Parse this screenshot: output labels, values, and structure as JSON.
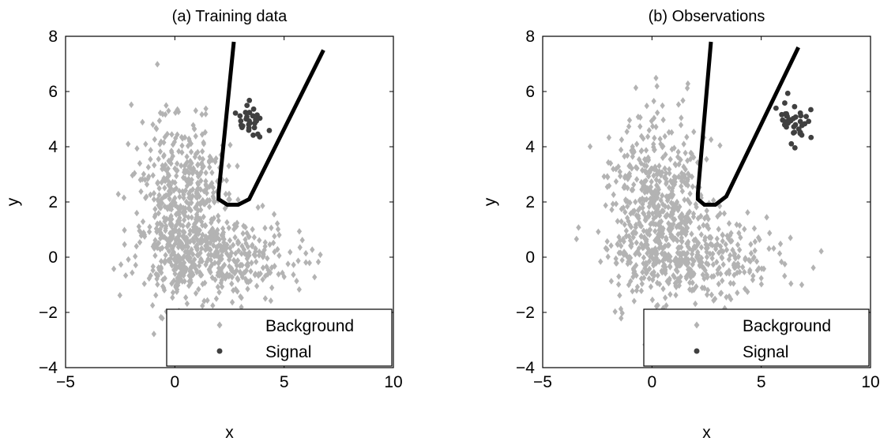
{
  "chart_data": [
    {
      "type": "scatter",
      "title": "(a) Training data",
      "xlabel": "x",
      "ylabel": "y",
      "xlim": [
        -5,
        10
      ],
      "ylim": [
        -4,
        8
      ],
      "xticks": [
        -5,
        0,
        5,
        10
      ],
      "yticks": [
        -4,
        -2,
        0,
        2,
        4,
        6,
        8
      ],
      "xtick_labels": [
        "−5",
        "0",
        "5",
        "10"
      ],
      "ytick_labels": [
        "−4",
        "−2",
        "0",
        "2",
        "4",
        "6",
        "8"
      ],
      "grid": false,
      "legend_position": "bottom-right",
      "series": [
        {
          "name": "Background",
          "marker": "diamond",
          "color": "#b3b3b3",
          "approximate_distribution": [
            {
              "count": 560,
              "center": [
                0.3,
                1.6
              ],
              "spread": [
                1.0,
                1.7
              ]
            },
            {
              "count": 330,
              "center": [
                2.3,
                0.0
              ],
              "spread": [
                1.7,
                0.8
              ]
            }
          ]
        },
        {
          "name": "Signal",
          "marker": "circle",
          "color": "#404040",
          "approximate_distribution": [
            {
              "count": 30,
              "center": [
                3.4,
                5.0
              ],
              "spread": [
                0.35,
                0.35
              ]
            }
          ]
        }
      ],
      "boundary_curve": {
        "color": "#000000",
        "points": [
          [
            2.7,
            7.8
          ],
          [
            2.0,
            2.3
          ],
          [
            2.0,
            2.1
          ],
          [
            2.4,
            1.9
          ],
          [
            2.9,
            1.9
          ],
          [
            3.4,
            2.1
          ],
          [
            6.8,
            7.5
          ]
        ]
      },
      "legend": [
        "Background",
        "Signal"
      ]
    },
    {
      "type": "scatter",
      "title": "(b) Observations",
      "xlabel": "x",
      "ylabel": "y",
      "xlim": [
        -5,
        10
      ],
      "ylim": [
        -4,
        8
      ],
      "xticks": [
        -5,
        0,
        5,
        10
      ],
      "yticks": [
        -4,
        -2,
        0,
        2,
        4,
        6,
        8
      ],
      "xtick_labels": [
        "−5",
        "0",
        "5",
        "10"
      ],
      "ytick_labels": [
        "−4",
        "−2",
        "0",
        "2",
        "4",
        "6",
        "8"
      ],
      "grid": false,
      "legend_position": "bottom-right",
      "series": [
        {
          "name": "Background",
          "marker": "diamond",
          "color": "#b3b3b3",
          "approximate_distribution": [
            {
              "count": 560,
              "center": [
                0.2,
                1.7
              ],
              "spread": [
                1.0,
                1.7
              ]
            },
            {
              "count": 330,
              "center": [
                2.3,
                0.0
              ],
              "spread": [
                1.8,
                0.8
              ]
            }
          ]
        },
        {
          "name": "Signal",
          "marker": "circle",
          "color": "#404040",
          "approximate_distribution": [
            {
              "count": 38,
              "center": [
                6.6,
                5.0
              ],
              "spread": [
                0.4,
                0.35
              ]
            }
          ]
        }
      ],
      "boundary_curve": {
        "color": "#000000",
        "points": [
          [
            2.7,
            7.8
          ],
          [
            2.1,
            2.3
          ],
          [
            2.1,
            2.1
          ],
          [
            2.4,
            1.9
          ],
          [
            2.9,
            1.9
          ],
          [
            3.4,
            2.2
          ],
          [
            6.7,
            7.6
          ]
        ]
      },
      "legend": [
        "Background",
        "Signal"
      ]
    }
  ]
}
